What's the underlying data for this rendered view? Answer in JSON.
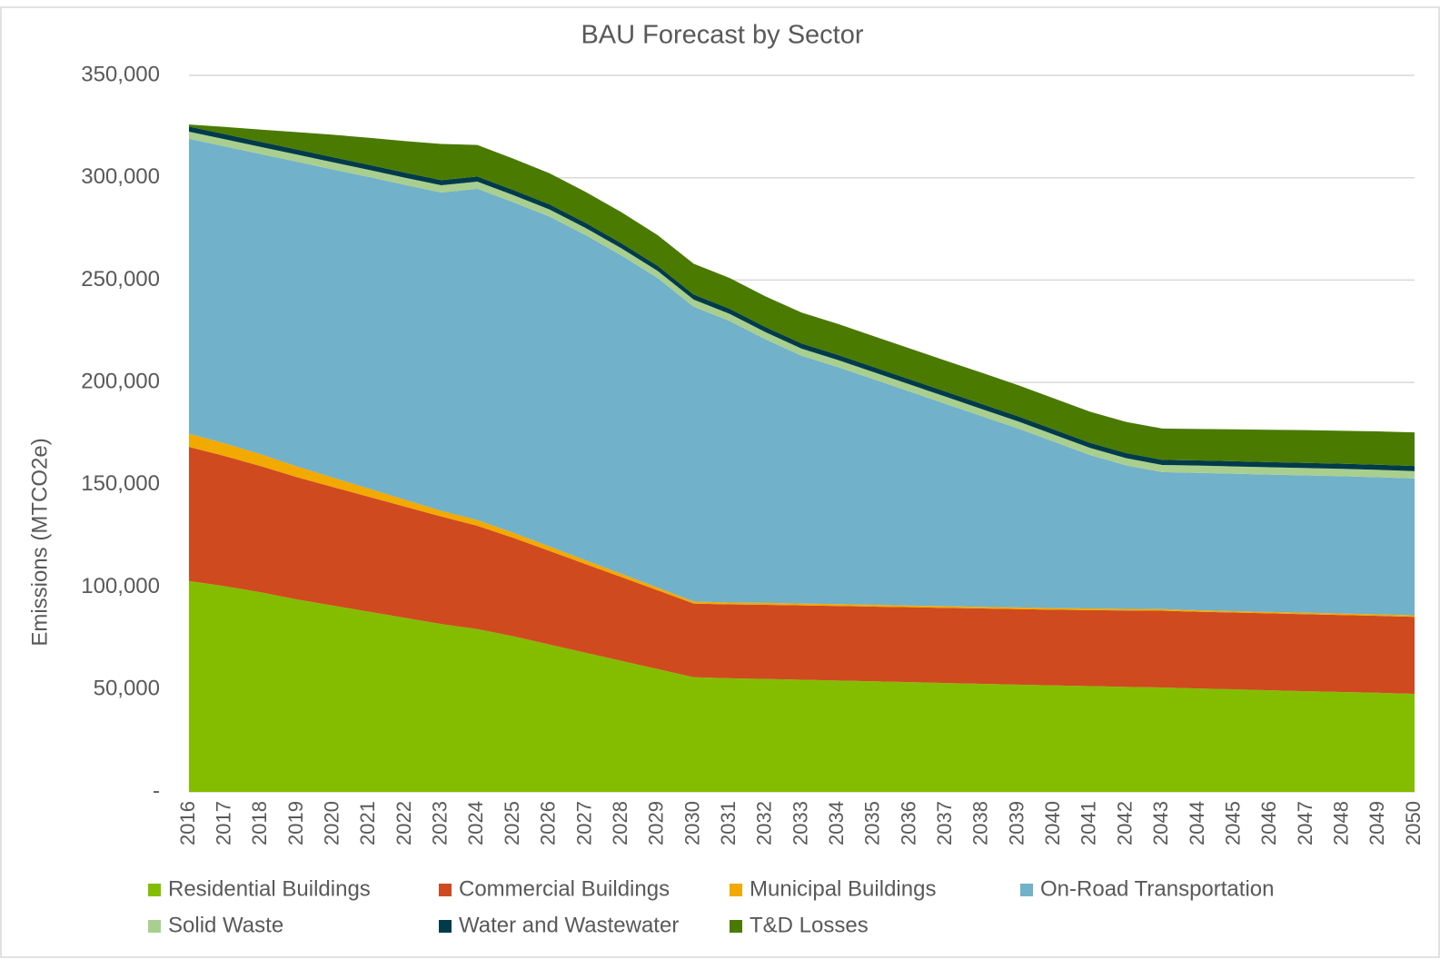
{
  "chart_data": {
    "type": "stacked_area",
    "title": "BAU Forecast by Sector",
    "y_label": "Emissions (MTCO2e)",
    "categories": [
      "2016",
      "2017",
      "2018",
      "2019",
      "2020",
      "2021",
      "2022",
      "2023",
      "2024",
      "2025",
      "2026",
      "2027",
      "2028",
      "2029",
      "2030",
      "2031",
      "2032",
      "2033",
      "2034",
      "2035",
      "2036",
      "2037",
      "2038",
      "2039",
      "2040",
      "2041",
      "2042",
      "2043",
      "2044",
      "2045",
      "2046",
      "2047",
      "2048",
      "2049",
      "2050"
    ],
    "series": [
      {
        "name": "Residential Buildings",
        "color": "#84bd00",
        "values": [
          103000,
          100500,
          97500,
          94000,
          91000,
          88000,
          85000,
          82000,
          79500,
          76000,
          72000,
          68000,
          64000,
          60000,
          56000,
          55500,
          55200,
          54800,
          54400,
          54000,
          53600,
          53200,
          52800,
          52400,
          52000,
          51700,
          51300,
          51000,
          50500,
          50100,
          49600,
          49200,
          48800,
          48400,
          47900
        ]
      },
      {
        "name": "Commercial Buildings",
        "color": "#d04a1f",
        "values": [
          65500,
          63500,
          61600,
          59700,
          57900,
          56100,
          54300,
          52500,
          50500,
          48100,
          45700,
          43300,
          40900,
          38500,
          36000,
          36100,
          36200,
          36300,
          36400,
          36500,
          36600,
          36700,
          36800,
          36900,
          37000,
          37100,
          37300,
          37500,
          37500,
          37500,
          37600,
          37600,
          37600,
          37600,
          37600
        ]
      },
      {
        "name": "Municipal Buildings",
        "color": "#f2a900",
        "values": [
          6500,
          6200,
          5800,
          5200,
          4600,
          4000,
          3400,
          2800,
          2800,
          2500,
          2200,
          1900,
          1600,
          1300,
          1000,
          900,
          900,
          900,
          900,
          900,
          800,
          800,
          800,
          800,
          800,
          800,
          800,
          800,
          700,
          700,
          700,
          700,
          700,
          700,
          700
        ]
      },
      {
        "name": "On-Road Transportation",
        "color": "#71b1c9",
        "values": [
          144000,
          145100,
          146600,
          148900,
          150500,
          152200,
          153800,
          155500,
          161800,
          161400,
          161100,
          158800,
          155500,
          151200,
          144000,
          137500,
          128700,
          121000,
          115800,
          110100,
          104500,
          98800,
          93100,
          87400,
          81200,
          74900,
          70100,
          66900,
          67100,
          67100,
          67100,
          67100,
          67100,
          67000,
          66900
        ]
      },
      {
        "name": "Solid Waste",
        "color": "#a9cf8e",
        "values": [
          3500,
          3500,
          3500,
          3500,
          3500,
          3500,
          3500,
          3500,
          3500,
          3500,
          3500,
          3500,
          3500,
          3500,
          3500,
          3500,
          3500,
          3500,
          3500,
          3500,
          3500,
          3500,
          3500,
          3500,
          3500,
          3500,
          3500,
          3500,
          3600,
          3600,
          3600,
          3600,
          3600,
          3600,
          3600
        ]
      },
      {
        "name": "Water and Wastewater",
        "color": "#003b4a",
        "values": [
          2500,
          2500,
          2500,
          2500,
          2500,
          2500,
          2500,
          2500,
          2500,
          2500,
          2500,
          2500,
          2500,
          2500,
          2500,
          2500,
          2500,
          2500,
          2500,
          2500,
          2500,
          2500,
          2500,
          2500,
          2500,
          2500,
          2500,
          2500,
          2500,
          2500,
          2500,
          2500,
          2500,
          2500,
          2500
        ]
      },
      {
        "name": "T&D Losses",
        "color": "#4a7a00",
        "values": [
          1000,
          3500,
          6000,
          8500,
          11000,
          13200,
          15400,
          17700,
          15400,
          15300,
          15200,
          15100,
          15100,
          15000,
          15000,
          15000,
          15000,
          15100,
          15100,
          15100,
          15100,
          15100,
          15200,
          15200,
          15200,
          15200,
          15200,
          15300,
          15400,
          15600,
          15800,
          16000,
          16100,
          16300,
          16400
        ]
      }
    ],
    "ylim": [
      0,
      350000
    ],
    "yticks": [
      {
        "value": 0,
        "label": "-"
      },
      {
        "value": 50000,
        "label": "50,000"
      },
      {
        "value": 100000,
        "label": "100,000"
      },
      {
        "value": 150000,
        "label": "150,000"
      },
      {
        "value": 200000,
        "label": "200,000"
      },
      {
        "value": 250000,
        "label": "250,000"
      },
      {
        "value": 300000,
        "label": "300,000"
      },
      {
        "value": 350000,
        "label": "350,000"
      }
    ],
    "grid": true,
    "legend": "bottom"
  }
}
